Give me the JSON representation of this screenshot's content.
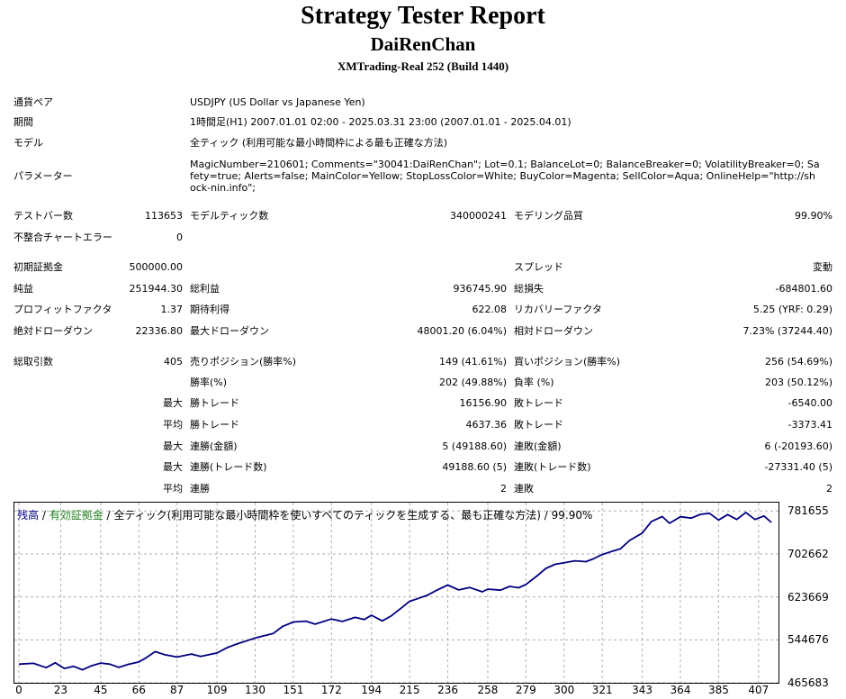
{
  "header": {
    "title": "Strategy Tester Report",
    "name": "DaiRenChan",
    "server": "XMTrading-Real 252 (Build 1440)"
  },
  "info": [
    {
      "label": "通貨ペア",
      "value": "USDJPY (US Dollar vs Japanese Yen)"
    },
    {
      "label": "期間",
      "value": "1時間足(H1) 2007.01.01 02:00 - 2025.03.31 23:00 (2007.01.01 - 2025.04.01)"
    },
    {
      "label": "モデル",
      "value": "全ティック (利用可能な最小時間枠による最も正確な方法)"
    },
    {
      "label": "パラメーター",
      "value": "MagicNumber=210601; Comments=\"30041:DaiRenChan\"; Lot=0.1; BalanceLot=0; BalanceBreaker=0; VolatilityBreaker=0; Safety=true; Alerts=false; MainColor=Yellow; StopLossColor=White; BuyColor=Magenta; SellColor=Aqua; OnlineHelp=\"http://shock-nin.info\";"
    }
  ],
  "bars": {
    "test_bars_label": "テストバー数",
    "test_bars": "113653",
    "model_ticks_label": "モデルティック数",
    "model_ticks": "340000241",
    "quality_label": "モデリング品質",
    "quality": "99.90%",
    "mismatch_label": "不整合チャートエラー",
    "mismatch": "0"
  },
  "stats": {
    "initial_deposit_label": "初期証拠金",
    "initial_deposit": "500000.00",
    "spread_label": "スプレッド",
    "spread": "変動",
    "net_profit_label": "純益",
    "net_profit": "251944.30",
    "gross_profit_label": "総利益",
    "gross_profit": "936745.90",
    "gross_loss_label": "総損失",
    "gross_loss": "-684801.60",
    "profit_factor_label": "プロフィットファクタ",
    "profit_factor": "1.37",
    "expected_payoff_label": "期待利得",
    "expected_payoff": "622.08",
    "recovery_factor_label": "リカバリーファクタ",
    "recovery_factor": "5.25 (YRF: 0.29)",
    "abs_dd_label": "絶対ドローダウン",
    "abs_dd": "22336.80",
    "max_dd_label": "最大ドローダウン",
    "max_dd": "48001.20 (6.04%)",
    "rel_dd_label": "相対ドローダウン",
    "rel_dd": "7.23% (37244.40)",
    "total_trades_label": "総取引数",
    "total_trades": "405",
    "short_label": "売りポジション(勝率%)",
    "short": "149 (41.61%)",
    "long_label": "買いポジション(勝率%)",
    "long": "256 (54.69%)",
    "win_rate_label": "勝率(%)",
    "win_rate": "202 (49.88%)",
    "loss_rate_label": "負率 (%)",
    "loss_rate": "203 (50.12%)"
  },
  "trades": [
    {
      "prefix": "最大",
      "l1": "勝トレード",
      "v1": "16156.90",
      "l2": "敗トレード",
      "v2": "-6540.00"
    },
    {
      "prefix": "平均",
      "l1": "勝トレード",
      "v1": "4637.36",
      "l2": "敗トレード",
      "v2": "-3373.41"
    },
    {
      "prefix": "最大",
      "l1": "連勝(金額)",
      "v1": "5 (49188.60)",
      "l2": "連敗(金額)",
      "v2": "6 (-20193.60)"
    },
    {
      "prefix": "最大",
      "l1": "連勝(トレード数)",
      "v1": "49188.60 (5)",
      "l2": "連敗(トレード数)",
      "v2": "-27331.40 (5)"
    },
    {
      "prefix": "平均",
      "l1": "連勝",
      "v1": "2",
      "l2": "連敗",
      "v2": "2"
    }
  ],
  "legend": {
    "balance": "残高",
    "sep1": " / ",
    "equity": "有効証拠金",
    "rest": " / 全ティック(利用可能な最小時間枠を使いすべてのティックを生成する、最も正確な方法) / 99.90%"
  },
  "colors": {
    "balance": "#000080",
    "equity": "#208020",
    "grid": "#b0b0b0"
  },
  "chart_data": {
    "type": "line",
    "ylim": [
      465683,
      797000
    ],
    "xlim": [
      0,
      416
    ],
    "y_ticks": [
      "781655",
      "702662",
      "623669",
      "544676",
      "465683"
    ],
    "y_tick_values": [
      781655,
      702662,
      623669,
      544676,
      465683
    ],
    "x_ticks": [
      "0",
      "23",
      "45",
      "66",
      "87",
      "109",
      "130",
      "151",
      "172",
      "194",
      "215",
      "236",
      "258",
      "279",
      "300",
      "321",
      "343",
      "364",
      "385",
      "407"
    ],
    "x_tick_values": [
      0,
      23,
      45,
      66,
      87,
      109,
      130,
      151,
      172,
      194,
      215,
      236,
      258,
      279,
      300,
      321,
      343,
      364,
      385,
      407
    ],
    "series": [
      {
        "x": [
          0,
          8,
          15,
          20,
          25,
          30,
          35,
          40,
          45,
          50,
          55,
          60,
          66,
          70,
          75,
          80,
          87,
          95,
          100,
          109,
          115,
          120,
          130,
          140,
          145,
          151,
          158,
          163,
          172,
          178,
          185,
          190,
          194,
          200,
          205,
          210,
          215,
          220,
          225,
          230,
          236,
          242,
          248,
          255,
          258,
          265,
          270,
          275,
          279,
          285,
          290,
          295,
          300,
          306,
          312,
          316,
          321,
          326,
          331,
          336,
          343,
          348,
          354,
          358,
          364,
          370,
          375,
          380,
          385,
          390,
          395,
          400,
          405,
          410,
          414
        ],
        "y": [
          500000,
          501500,
          493500,
          502500,
          492000,
          496000,
          489500,
          497000,
          502000,
          500000,
          494000,
          499500,
          504000,
          511500,
          523000,
          517500,
          513000,
          518500,
          514000,
          520500,
          531000,
          537000,
          548000,
          556500,
          569000,
          577500,
          579000,
          573500,
          583000,
          578500,
          586000,
          582000,
          590000,
          579500,
          589000,
          602000,
          615500,
          621000,
          627000,
          636000,
          645500,
          636500,
          641000,
          633000,
          638000,
          636000,
          643000,
          640500,
          646500,
          662000,
          676000,
          683500,
          686500,
          690000,
          688500,
          693500,
          701500,
          707000,
          712000,
          727500,
          741000,
          762000,
          771500,
          759000,
          771000,
          768500,
          775500,
          777500,
          765000,
          775000,
          766000,
          779000,
          766000,
          772500,
          760500
        ]
      }
    ]
  }
}
